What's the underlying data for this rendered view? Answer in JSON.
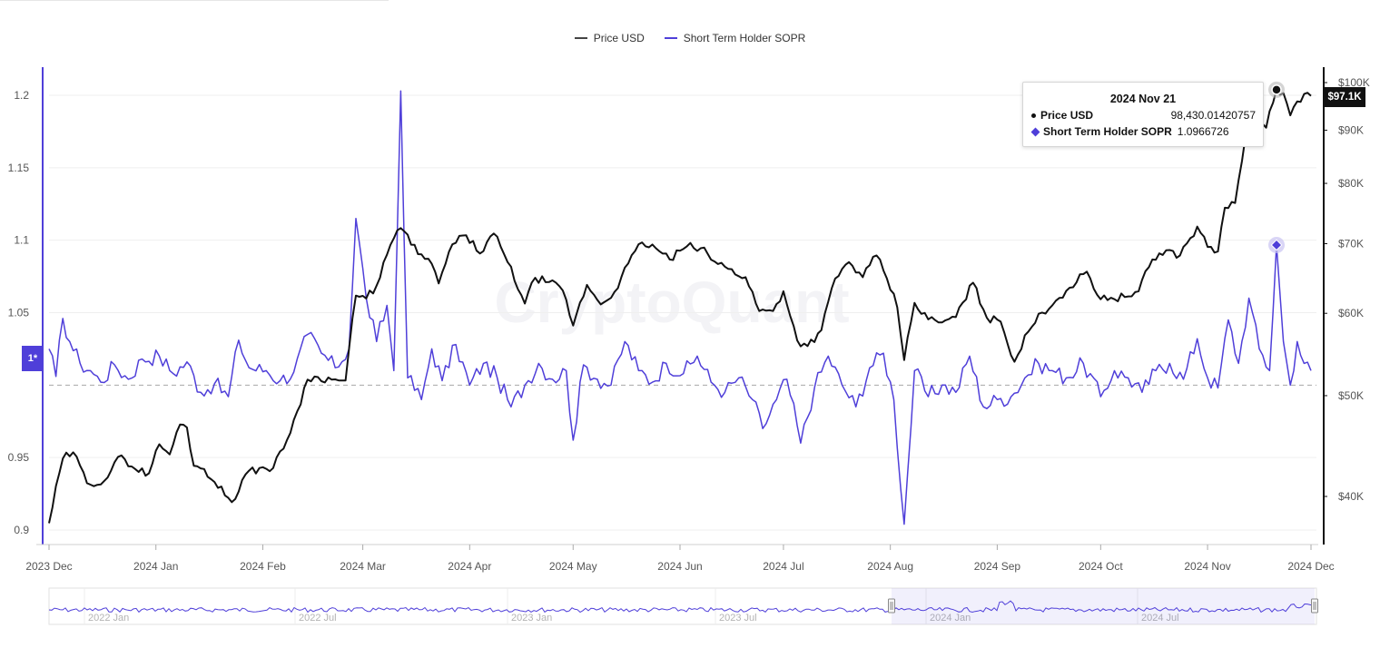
{
  "legend": {
    "price_label": "Price USD",
    "sopr_label": "Short Term Holder SOPR",
    "price_color": "#111111",
    "sopr_color": "#4f3fd9"
  },
  "tooltip": {
    "date": "2024 Nov 21",
    "price_label": "Price USD",
    "price_value": "98,430.01420757",
    "sopr_label": "Short Term Holder SOPR",
    "sopr_value": "1.0966726"
  },
  "price_badge": "$97.1K",
  "y_badge": "1*",
  "watermark": "CryptoQuant",
  "chart_data": {
    "type": "line",
    "x_range": [
      "2023-12-01",
      "2024-12-01"
    ],
    "x_ticks": [
      "2023 Dec",
      "2024 Jan",
      "2024 Feb",
      "2024 Mar",
      "2024 Apr",
      "2024 May",
      "2024 Jun",
      "2024 Jul",
      "2024 Aug",
      "2024 Sep",
      "2024 Oct",
      "2024 Nov",
      "2024 Dec"
    ],
    "left_axis": {
      "ticks": [
        0.9,
        0.95,
        1,
        1.05,
        1.1,
        1.15,
        1.2
      ],
      "labels": [
        "0.9",
        "0.95",
        "",
        "1.05",
        "1.1",
        "1.15",
        "1.2"
      ],
      "range": [
        0.895,
        1.215
      ]
    },
    "right_axis": {
      "scale": "log",
      "ticks": [
        40000,
        50000,
        60000,
        70000,
        80000,
        90000,
        100000
      ],
      "labels": [
        "$40K",
        "$50K",
        "$60K",
        "$70K",
        "$80K",
        "$90K",
        "$100K"
      ],
      "range": [
        34500,
        104000
      ]
    },
    "reference_line": 1.0,
    "series": [
      {
        "name": "Price USD",
        "axis": "right",
        "color": "#111111",
        "points": [
          [
            "2023-12-01",
            37700
          ],
          [
            "2023-12-05",
            43500
          ],
          [
            "2023-12-08",
            44100
          ],
          [
            "2023-12-12",
            41200
          ],
          [
            "2023-12-17",
            41400
          ],
          [
            "2023-12-22",
            43800
          ],
          [
            "2023-12-26",
            42500
          ],
          [
            "2023-12-30",
            42100
          ],
          [
            "2024-01-02",
            44900
          ],
          [
            "2024-01-05",
            43900
          ],
          [
            "2024-01-08",
            46900
          ],
          [
            "2024-01-10",
            46600
          ],
          [
            "2024-01-12",
            42800
          ],
          [
            "2024-01-15",
            42500
          ],
          [
            "2024-01-18",
            41300
          ],
          [
            "2024-01-23",
            39500
          ],
          [
            "2024-01-27",
            42000
          ],
          [
            "2024-01-31",
            42600
          ],
          [
            "2024-02-04",
            42600
          ],
          [
            "2024-02-08",
            45300
          ],
          [
            "2024-02-11",
            48300
          ],
          [
            "2024-02-14",
            51800
          ],
          [
            "2024-02-17",
            52100
          ],
          [
            "2024-02-21",
            51800
          ],
          [
            "2024-02-25",
            51700
          ],
          [
            "2024-02-28",
            62400
          ],
          [
            "2024-03-02",
            62000
          ],
          [
            "2024-03-05",
            63800
          ],
          [
            "2024-03-08",
            68300
          ],
          [
            "2024-03-11",
            72100
          ],
          [
            "2024-03-14",
            71400
          ],
          [
            "2024-03-17",
            68400
          ],
          [
            "2024-03-20",
            67700
          ],
          [
            "2024-03-23",
            64100
          ],
          [
            "2024-03-27",
            69900
          ],
          [
            "2024-03-31",
            71300
          ],
          [
            "2024-04-04",
            68500
          ],
          [
            "2024-04-08",
            71600
          ],
          [
            "2024-04-12",
            67200
          ],
          [
            "2024-04-17",
            61300
          ],
          [
            "2024-04-20",
            64900
          ],
          [
            "2024-04-24",
            64300
          ],
          [
            "2024-04-28",
            63100
          ],
          [
            "2024-05-01",
            58400
          ],
          [
            "2024-05-05",
            63900
          ],
          [
            "2024-05-09",
            61200
          ],
          [
            "2024-05-13",
            62900
          ],
          [
            "2024-05-17",
            67000
          ],
          [
            "2024-05-21",
            70200
          ],
          [
            "2024-05-25",
            69300
          ],
          [
            "2024-05-29",
            67600
          ],
          [
            "2024-06-03",
            69600
          ],
          [
            "2024-06-07",
            69300
          ],
          [
            "2024-06-11",
            67300
          ],
          [
            "2024-06-15",
            66200
          ],
          [
            "2024-06-20",
            65000
          ],
          [
            "2024-06-24",
            60300
          ],
          [
            "2024-06-28",
            60300
          ],
          [
            "2024-07-01",
            63000
          ],
          [
            "2024-07-05",
            56500
          ],
          [
            "2024-07-08",
            55800
          ],
          [
            "2024-07-12",
            57800
          ],
          [
            "2024-07-16",
            64800
          ],
          [
            "2024-07-20",
            67200
          ],
          [
            "2024-07-24",
            65000
          ],
          [
            "2024-07-28",
            68200
          ],
          [
            "2024-07-31",
            64800
          ],
          [
            "2024-08-03",
            60800
          ],
          [
            "2024-08-05",
            54100
          ],
          [
            "2024-08-08",
            61400
          ],
          [
            "2024-08-12",
            59200
          ],
          [
            "2024-08-16",
            58800
          ],
          [
            "2024-08-20",
            59500
          ],
          [
            "2024-08-25",
            64200
          ],
          [
            "2024-08-29",
            59400
          ],
          [
            "2024-09-02",
            58900
          ],
          [
            "2024-09-06",
            53900
          ],
          [
            "2024-09-10",
            57600
          ],
          [
            "2024-09-14",
            60100
          ],
          [
            "2024-09-18",
            61700
          ],
          [
            "2024-09-22",
            63500
          ],
          [
            "2024-09-27",
            65800
          ],
          [
            "2024-10-01",
            61900
          ],
          [
            "2024-10-04",
            62100
          ],
          [
            "2024-10-08",
            62200
          ],
          [
            "2024-10-12",
            63000
          ],
          [
            "2024-10-16",
            67600
          ],
          [
            "2024-10-20",
            69000
          ],
          [
            "2024-10-24",
            68200
          ],
          [
            "2024-10-29",
            72700
          ],
          [
            "2024-11-01",
            69500
          ],
          [
            "2024-11-04",
            68800
          ],
          [
            "2024-11-06",
            75800
          ],
          [
            "2024-11-09",
            76600
          ],
          [
            "2024-11-12",
            88700
          ],
          [
            "2024-11-15",
            91000
          ],
          [
            "2024-11-18",
            90500
          ],
          [
            "2024-11-21",
            98430
          ],
          [
            "2024-11-23",
            97700
          ],
          [
            "2024-11-25",
            93000
          ],
          [
            "2024-11-27",
            95900
          ],
          [
            "2024-11-29",
            97500
          ],
          [
            "2024-12-01",
            97100
          ]
        ]
      },
      {
        "name": "Short Term Holder SOPR",
        "axis": "left",
        "color": "#4f3fd9",
        "points": [
          [
            "2023-12-01",
            1.025
          ],
          [
            "2023-12-03",
            1.006
          ],
          [
            "2023-12-05",
            1.046
          ],
          [
            "2023-12-07",
            1.03
          ],
          [
            "2023-12-10",
            1.015
          ],
          [
            "2023-12-13",
            1.01
          ],
          [
            "2023-12-16",
            1.002
          ],
          [
            "2023-12-20",
            1.014
          ],
          [
            "2023-12-24",
            1.004
          ],
          [
            "2023-12-28",
            1.018
          ],
          [
            "2024-01-02",
            1.02
          ],
          [
            "2024-01-06",
            1.008
          ],
          [
            "2024-01-10",
            1.016
          ],
          [
            "2024-01-14",
            0.995
          ],
          [
            "2024-01-18",
            1.001
          ],
          [
            "2024-01-22",
            0.992
          ],
          [
            "2024-01-25",
            1.031
          ],
          [
            "2024-01-28",
            1.012
          ],
          [
            "2024-02-02",
            1.01
          ],
          [
            "2024-02-06",
            1.003
          ],
          [
            "2024-02-10",
            1.009
          ],
          [
            "2024-02-14",
            1.035
          ],
          [
            "2024-02-18",
            1.022
          ],
          [
            "2024-02-22",
            1.012
          ],
          [
            "2024-02-26",
            1.025
          ],
          [
            "2024-02-28",
            1.115
          ],
          [
            "2024-03-02",
            1.06
          ],
          [
            "2024-03-05",
            1.03
          ],
          [
            "2024-03-08",
            1.055
          ],
          [
            "2024-03-10",
            1.01
          ],
          [
            "2024-03-12",
            1.203
          ],
          [
            "2024-03-14",
            1.005
          ],
          [
            "2024-03-18",
            0.99
          ],
          [
            "2024-03-21",
            1.025
          ],
          [
            "2024-03-24",
            1.003
          ],
          [
            "2024-03-28",
            1.028
          ],
          [
            "2024-04-01",
            1.0
          ],
          [
            "2024-04-05",
            1.015
          ],
          [
            "2024-04-09",
            1.005
          ],
          [
            "2024-04-13",
            0.985
          ],
          [
            "2024-04-17",
            1.0
          ],
          [
            "2024-04-21",
            1.015
          ],
          [
            "2024-04-25",
            1.004
          ],
          [
            "2024-04-29",
            1.01
          ],
          [
            "2024-05-01",
            0.962
          ],
          [
            "2024-05-04",
            1.014
          ],
          [
            "2024-05-08",
            1.004
          ],
          [
            "2024-05-12",
            1.0
          ],
          [
            "2024-05-16",
            1.03
          ],
          [
            "2024-05-20",
            1.01
          ],
          [
            "2024-05-24",
            1.002
          ],
          [
            "2024-05-28",
            1.015
          ],
          [
            "2024-06-02",
            1.008
          ],
          [
            "2024-06-06",
            1.02
          ],
          [
            "2024-06-10",
            1.002
          ],
          [
            "2024-06-14",
            0.995
          ],
          [
            "2024-06-18",
            1.005
          ],
          [
            "2024-06-22",
            0.99
          ],
          [
            "2024-06-25",
            0.97
          ],
          [
            "2024-06-29",
            0.99
          ],
          [
            "2024-07-02",
            1.004
          ],
          [
            "2024-07-06",
            0.96
          ],
          [
            "2024-07-10",
            0.998
          ],
          [
            "2024-07-14",
            1.02
          ],
          [
            "2024-07-18",
            1.0
          ],
          [
            "2024-07-22",
            0.985
          ],
          [
            "2024-07-26",
            1.012
          ],
          [
            "2024-07-30",
            1.022
          ],
          [
            "2024-08-02",
            0.99
          ],
          [
            "2024-08-05",
            0.904
          ],
          [
            "2024-08-08",
            1.01
          ],
          [
            "2024-08-12",
            0.992
          ],
          [
            "2024-08-16",
            1.0
          ],
          [
            "2024-08-20",
            0.995
          ],
          [
            "2024-08-24",
            1.02
          ],
          [
            "2024-08-28",
            0.985
          ],
          [
            "2024-09-01",
            0.99
          ],
          [
            "2024-09-05",
            0.992
          ],
          [
            "2024-09-09",
            1.005
          ],
          [
            "2024-09-13",
            1.015
          ],
          [
            "2024-09-17",
            1.01
          ],
          [
            "2024-09-21",
            1.005
          ],
          [
            "2024-09-26",
            1.015
          ],
          [
            "2024-10-01",
            0.992
          ],
          [
            "2024-10-05",
            1.01
          ],
          [
            "2024-10-09",
            1.005
          ],
          [
            "2024-10-13",
            0.995
          ],
          [
            "2024-10-17",
            1.01
          ],
          [
            "2024-10-21",
            1.015
          ],
          [
            "2024-10-25",
            1.004
          ],
          [
            "2024-10-29",
            1.032
          ],
          [
            "2024-11-01",
            1.005
          ],
          [
            "2024-11-04",
            0.998
          ],
          [
            "2024-11-07",
            1.045
          ],
          [
            "2024-11-10",
            1.015
          ],
          [
            "2024-11-13",
            1.06
          ],
          [
            "2024-11-16",
            1.025
          ],
          [
            "2024-11-19",
            1.01
          ],
          [
            "2024-11-21",
            1.0967
          ],
          [
            "2024-11-23",
            1.03
          ],
          [
            "2024-11-25",
            1.0
          ],
          [
            "2024-11-27",
            1.03
          ],
          [
            "2024-11-29",
            1.015
          ],
          [
            "2024-12-01",
            1.01
          ]
        ]
      }
    ],
    "navigator": {
      "x_ticks": [
        "2022 Jan",
        "2022 Jul",
        "2023 Jan",
        "2023 Jul",
        "2024 Jan",
        "2024 Jul"
      ],
      "selected_range": [
        "2023-12-01",
        "2024-12-01"
      ]
    }
  }
}
